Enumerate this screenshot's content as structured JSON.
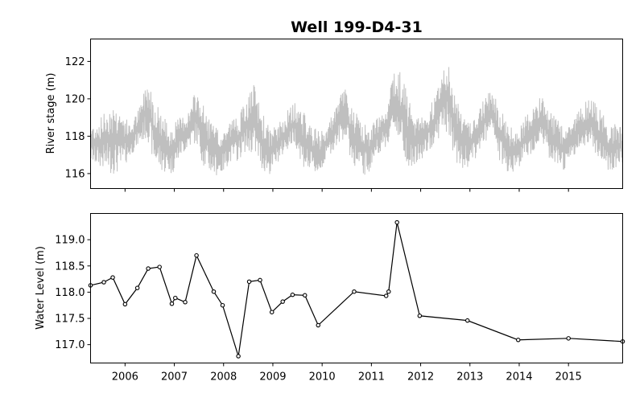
{
  "figure": {
    "title": "Well 199-D4-31"
  },
  "chart_data": [
    {
      "type": "area",
      "name": "river-stage-panel",
      "ylabel": "River stage (m)",
      "xlim": [
        2005.3,
        2016.1
      ],
      "ylim": [
        115.2,
        123.2
      ],
      "yticks": [
        116,
        118,
        120,
        122
      ],
      "xticks": [
        2006,
        2007,
        2008,
        2009,
        2010,
        2011,
        2012,
        2013,
        2014,
        2015
      ],
      "xtick_labels_shown": false,
      "color": "#bfbfbf",
      "envelope": [
        [
          2005.3,
          116.6,
          118.6
        ],
        [
          2005.5,
          116.3,
          119.0
        ],
        [
          2005.7,
          116.0,
          119.8
        ],
        [
          2005.9,
          116.0,
          119.6
        ],
        [
          2006.1,
          116.9,
          118.6
        ],
        [
          2006.3,
          117.6,
          119.6
        ],
        [
          2006.45,
          117.9,
          121.1
        ],
        [
          2006.6,
          116.4,
          120.1
        ],
        [
          2006.8,
          116.0,
          119.0
        ],
        [
          2006.95,
          115.9,
          118.6
        ],
        [
          2007.1,
          116.8,
          119.0
        ],
        [
          2007.3,
          117.4,
          119.4
        ],
        [
          2007.45,
          117.6,
          120.6
        ],
        [
          2007.6,
          116.3,
          119.6
        ],
        [
          2007.8,
          115.9,
          118.6
        ],
        [
          2007.95,
          115.9,
          118.2
        ],
        [
          2008.1,
          116.5,
          118.8
        ],
        [
          2008.3,
          116.7,
          119.2
        ],
        [
          2008.45,
          117.2,
          119.8
        ],
        [
          2008.6,
          117.0,
          120.9
        ],
        [
          2008.8,
          116.1,
          119.2
        ],
        [
          2008.95,
          115.9,
          118.4
        ],
        [
          2009.1,
          116.6,
          118.6
        ],
        [
          2009.3,
          117.3,
          119.4
        ],
        [
          2009.45,
          117.6,
          119.8
        ],
        [
          2009.6,
          116.4,
          119.4
        ],
        [
          2009.8,
          115.9,
          118.6
        ],
        [
          2009.95,
          115.9,
          118.2
        ],
        [
          2010.1,
          116.8,
          118.6
        ],
        [
          2010.3,
          117.5,
          119.6
        ],
        [
          2010.45,
          117.9,
          120.9
        ],
        [
          2010.6,
          116.6,
          119.6
        ],
        [
          2010.8,
          115.9,
          118.8
        ],
        [
          2010.95,
          116.0,
          118.6
        ],
        [
          2011.1,
          117.0,
          118.9
        ],
        [
          2011.3,
          117.4,
          119.8
        ],
        [
          2011.5,
          118.1,
          122.1
        ],
        [
          2011.65,
          117.0,
          121.0
        ],
        [
          2011.8,
          116.1,
          119.6
        ],
        [
          2011.95,
          116.4,
          119.1
        ],
        [
          2012.1,
          117.0,
          119.0
        ],
        [
          2012.3,
          117.6,
          120.4
        ],
        [
          2012.5,
          118.3,
          122.4
        ],
        [
          2012.65,
          117.2,
          121.0
        ],
        [
          2012.8,
          116.0,
          119.6
        ],
        [
          2012.95,
          116.2,
          119.1
        ],
        [
          2013.1,
          116.7,
          118.9
        ],
        [
          2013.3,
          117.6,
          120.1
        ],
        [
          2013.45,
          118.0,
          120.6
        ],
        [
          2013.6,
          116.6,
          119.6
        ],
        [
          2013.8,
          116.0,
          118.6
        ],
        [
          2013.95,
          116.2,
          118.4
        ],
        [
          2014.1,
          116.6,
          119.1
        ],
        [
          2014.3,
          117.2,
          119.6
        ],
        [
          2014.45,
          117.7,
          120.4
        ],
        [
          2014.6,
          116.6,
          119.6
        ],
        [
          2014.8,
          116.1,
          118.8
        ],
        [
          2014.95,
          116.2,
          118.6
        ],
        [
          2015.1,
          116.8,
          118.9
        ],
        [
          2015.3,
          117.4,
          119.8
        ],
        [
          2015.45,
          117.6,
          120.1
        ],
        [
          2015.6,
          116.8,
          119.6
        ],
        [
          2015.8,
          116.1,
          118.8
        ],
        [
          2016.1,
          116.4,
          118.6
        ]
      ]
    },
    {
      "type": "line",
      "name": "water-level-panel",
      "ylabel": "Water Level (m)",
      "xlim": [
        2005.3,
        2016.1
      ],
      "ylim": [
        116.65,
        119.5
      ],
      "yticks": [
        117.0,
        117.5,
        118.0,
        118.5,
        119.0
      ],
      "xticks": [
        2006,
        2007,
        2008,
        2009,
        2010,
        2011,
        2012,
        2013,
        2014,
        2015
      ],
      "xtick_labels": [
        "2006",
        "2007",
        "2008",
        "2009",
        "2010",
        "2011",
        "2012",
        "2013",
        "2014",
        "2015"
      ],
      "color": "#000000",
      "marker": "circle-open",
      "points": [
        [
          2005.3,
          118.13
        ],
        [
          2005.57,
          118.19
        ],
        [
          2005.75,
          118.28
        ],
        [
          2006.0,
          117.77
        ],
        [
          2006.25,
          118.08
        ],
        [
          2006.47,
          118.45
        ],
        [
          2006.7,
          118.48
        ],
        [
          2006.95,
          117.78
        ],
        [
          2007.02,
          117.89
        ],
        [
          2007.22,
          117.81
        ],
        [
          2007.45,
          118.7
        ],
        [
          2007.8,
          118.01
        ],
        [
          2007.98,
          117.75
        ],
        [
          2008.3,
          116.78
        ],
        [
          2008.52,
          118.2
        ],
        [
          2008.74,
          118.23
        ],
        [
          2008.98,
          117.62
        ],
        [
          2009.2,
          117.82
        ],
        [
          2009.4,
          117.95
        ],
        [
          2009.65,
          117.94
        ],
        [
          2009.92,
          117.37
        ],
        [
          2010.65,
          118.01
        ],
        [
          2011.3,
          117.93
        ],
        [
          2011.35,
          118.01
        ],
        [
          2011.52,
          119.33
        ],
        [
          2011.98,
          117.55
        ],
        [
          2012.95,
          117.46
        ],
        [
          2013.98,
          117.09
        ],
        [
          2015.0,
          117.12
        ],
        [
          2016.1,
          117.06
        ]
      ]
    }
  ]
}
